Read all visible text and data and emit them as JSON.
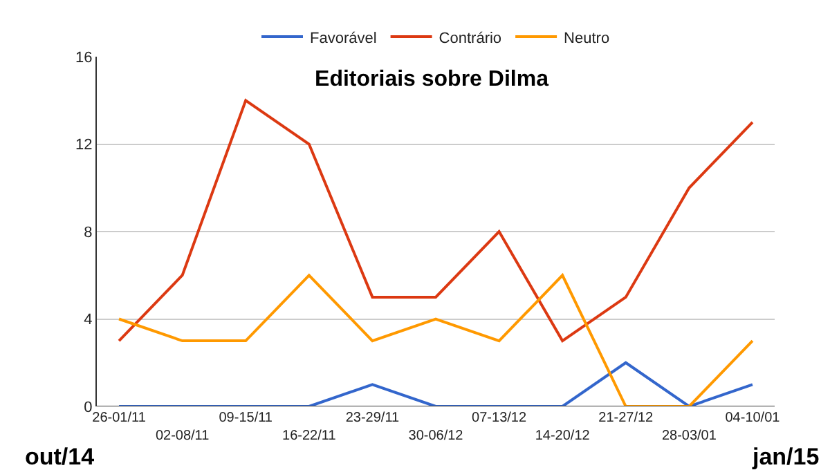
{
  "chart_data": {
    "type": "line",
    "title": "Editoriais sobre Dilma",
    "categories": [
      "26-01/11",
      "02-08/11",
      "09-15/11",
      "16-22/11",
      "23-29/11",
      "30-06/12",
      "07-13/12",
      "14-20/12",
      "21-27/12",
      "28-03/01",
      "04-10/01"
    ],
    "series": [
      {
        "name": "Favorável",
        "color": "#3366cc",
        "values": [
          0,
          0,
          0,
          0,
          1,
          0,
          0,
          0,
          2,
          0,
          1
        ]
      },
      {
        "name": "Contrário",
        "color": "#dc3912",
        "values": [
          3,
          6,
          14,
          12,
          5,
          5,
          8,
          3,
          5,
          10,
          13
        ]
      },
      {
        "name": "Neutro",
        "color": "#ff9900",
        "values": [
          4,
          3,
          3,
          6,
          3,
          4,
          3,
          6,
          0,
          0,
          3
        ]
      }
    ],
    "ylim": [
      0,
      16
    ],
    "yticks": [
      0,
      4,
      8,
      12,
      16
    ],
    "grid": "y",
    "legend": "top",
    "marker": "none",
    "line_style": "solid",
    "annotations": [
      "out/14",
      "jan/15"
    ]
  }
}
